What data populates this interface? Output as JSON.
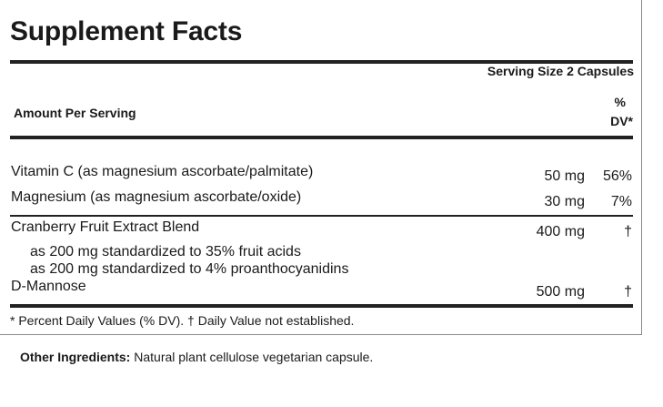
{
  "label": {
    "title": "Supplement Facts",
    "serving_size": "Serving Size 2 Capsules",
    "amount_per_serving": "Amount Per Serving",
    "dv_header_line1": "%",
    "dv_header_line2": "DV*"
  },
  "nutrients": [
    {
      "name": "Vitamin C (as magnesium ascorbate/palmitate)",
      "amount": "50 mg",
      "dv": "56%"
    },
    {
      "name": "Magnesium (as magnesium ascorbate/oxide)",
      "amount": "30 mg",
      "dv": "7%"
    }
  ],
  "blend": {
    "name": "Cranberry Fruit Extract Blend",
    "amount": "400 mg",
    "dv": "†",
    "sub_items": [
      "as 200 mg standardized to 35% fruit acids",
      "as 200 mg standardized to 4% proanthocyanidins"
    ]
  },
  "mannose": {
    "name": "D-Mannose",
    "amount": "500 mg",
    "dv": "†"
  },
  "footnote": "* Percent Daily Values (% DV). † Daily Value not established.",
  "other_ingredients": {
    "label": "Other Ingredients:",
    "text": " Natural plant cellulose vegetarian capsule."
  }
}
